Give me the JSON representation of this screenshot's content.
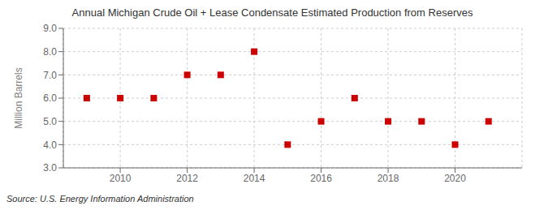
{
  "chart_data": {
    "type": "scatter",
    "title": "Annual Michigan Crude Oil + Lease Condensate Estimated Production from Reserves",
    "y_label": "Million Barrels",
    "annotations": [
      "Source: U.S. Energy Information Administration"
    ],
    "x": [
      2009,
      2010,
      2011,
      2012,
      2013,
      2014,
      2015,
      2016,
      2017,
      2018,
      2019,
      2020,
      2021
    ],
    "values": [
      6.0,
      6.0,
      6.0,
      7.0,
      7.0,
      8.0,
      4.0,
      5.0,
      6.0,
      5.0,
      5.0,
      4.0,
      5.0
    ],
    "xlim": [
      2008.3,
      2022.0
    ],
    "xticks": [
      2010,
      2012,
      2014,
      2016,
      2018,
      2020
    ],
    "ylim": [
      3.0,
      9.0
    ],
    "yticks": [
      {
        "value": 3,
        "label": "3.0"
      },
      {
        "value": 4,
        "label": "4.0"
      },
      {
        "value": 5,
        "label": "5.0"
      },
      {
        "value": 6,
        "label": "6.0"
      },
      {
        "value": 7,
        "label": "7.0"
      },
      {
        "value": 8,
        "label": "8.0"
      },
      {
        "value": 9,
        "label": "9.0"
      }
    ],
    "color": "#cc0000",
    "marker": "square",
    "grid": true
  }
}
